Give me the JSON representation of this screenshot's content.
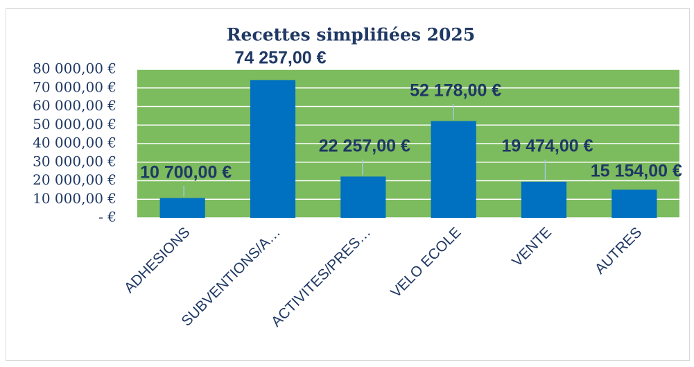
{
  "chart_data": {
    "type": "bar",
    "title": "Recettes simplifiées 2025",
    "categories": [
      "ADHESIONS",
      "SUBVENTIONS/A…",
      "ACTIVITES/PRES…",
      "VELO ECOLE",
      "VENTE",
      "AUTRES"
    ],
    "values": [
      10700,
      74257,
      22257,
      52178,
      19474,
      15154
    ],
    "value_labels": [
      "10 700,00 €",
      "74 257,00 €",
      "22 257,00 €",
      "52 178,00 €",
      "19 474,00 €",
      "15 154,00 €"
    ],
    "color": "#0070c0",
    "plot_background": "#7cbb5e",
    "ylim": [
      0,
      80000
    ],
    "yticks": [
      {
        "value": 0,
        "label": "-  €"
      },
      {
        "value": 10000,
        "label": "10 000,00 €"
      },
      {
        "value": 20000,
        "label": "20 000,00 €"
      },
      {
        "value": 30000,
        "label": "30 000,00 €"
      },
      {
        "value": 40000,
        "label": "40 000,00 €"
      },
      {
        "value": 50000,
        "label": "50 000,00 €"
      },
      {
        "value": 60000,
        "label": "60 000,00 €"
      },
      {
        "value": 70000,
        "label": "70 000,00 €"
      },
      {
        "value": 80000,
        "label": "80 000,00 €"
      }
    ],
    "grid": true
  }
}
